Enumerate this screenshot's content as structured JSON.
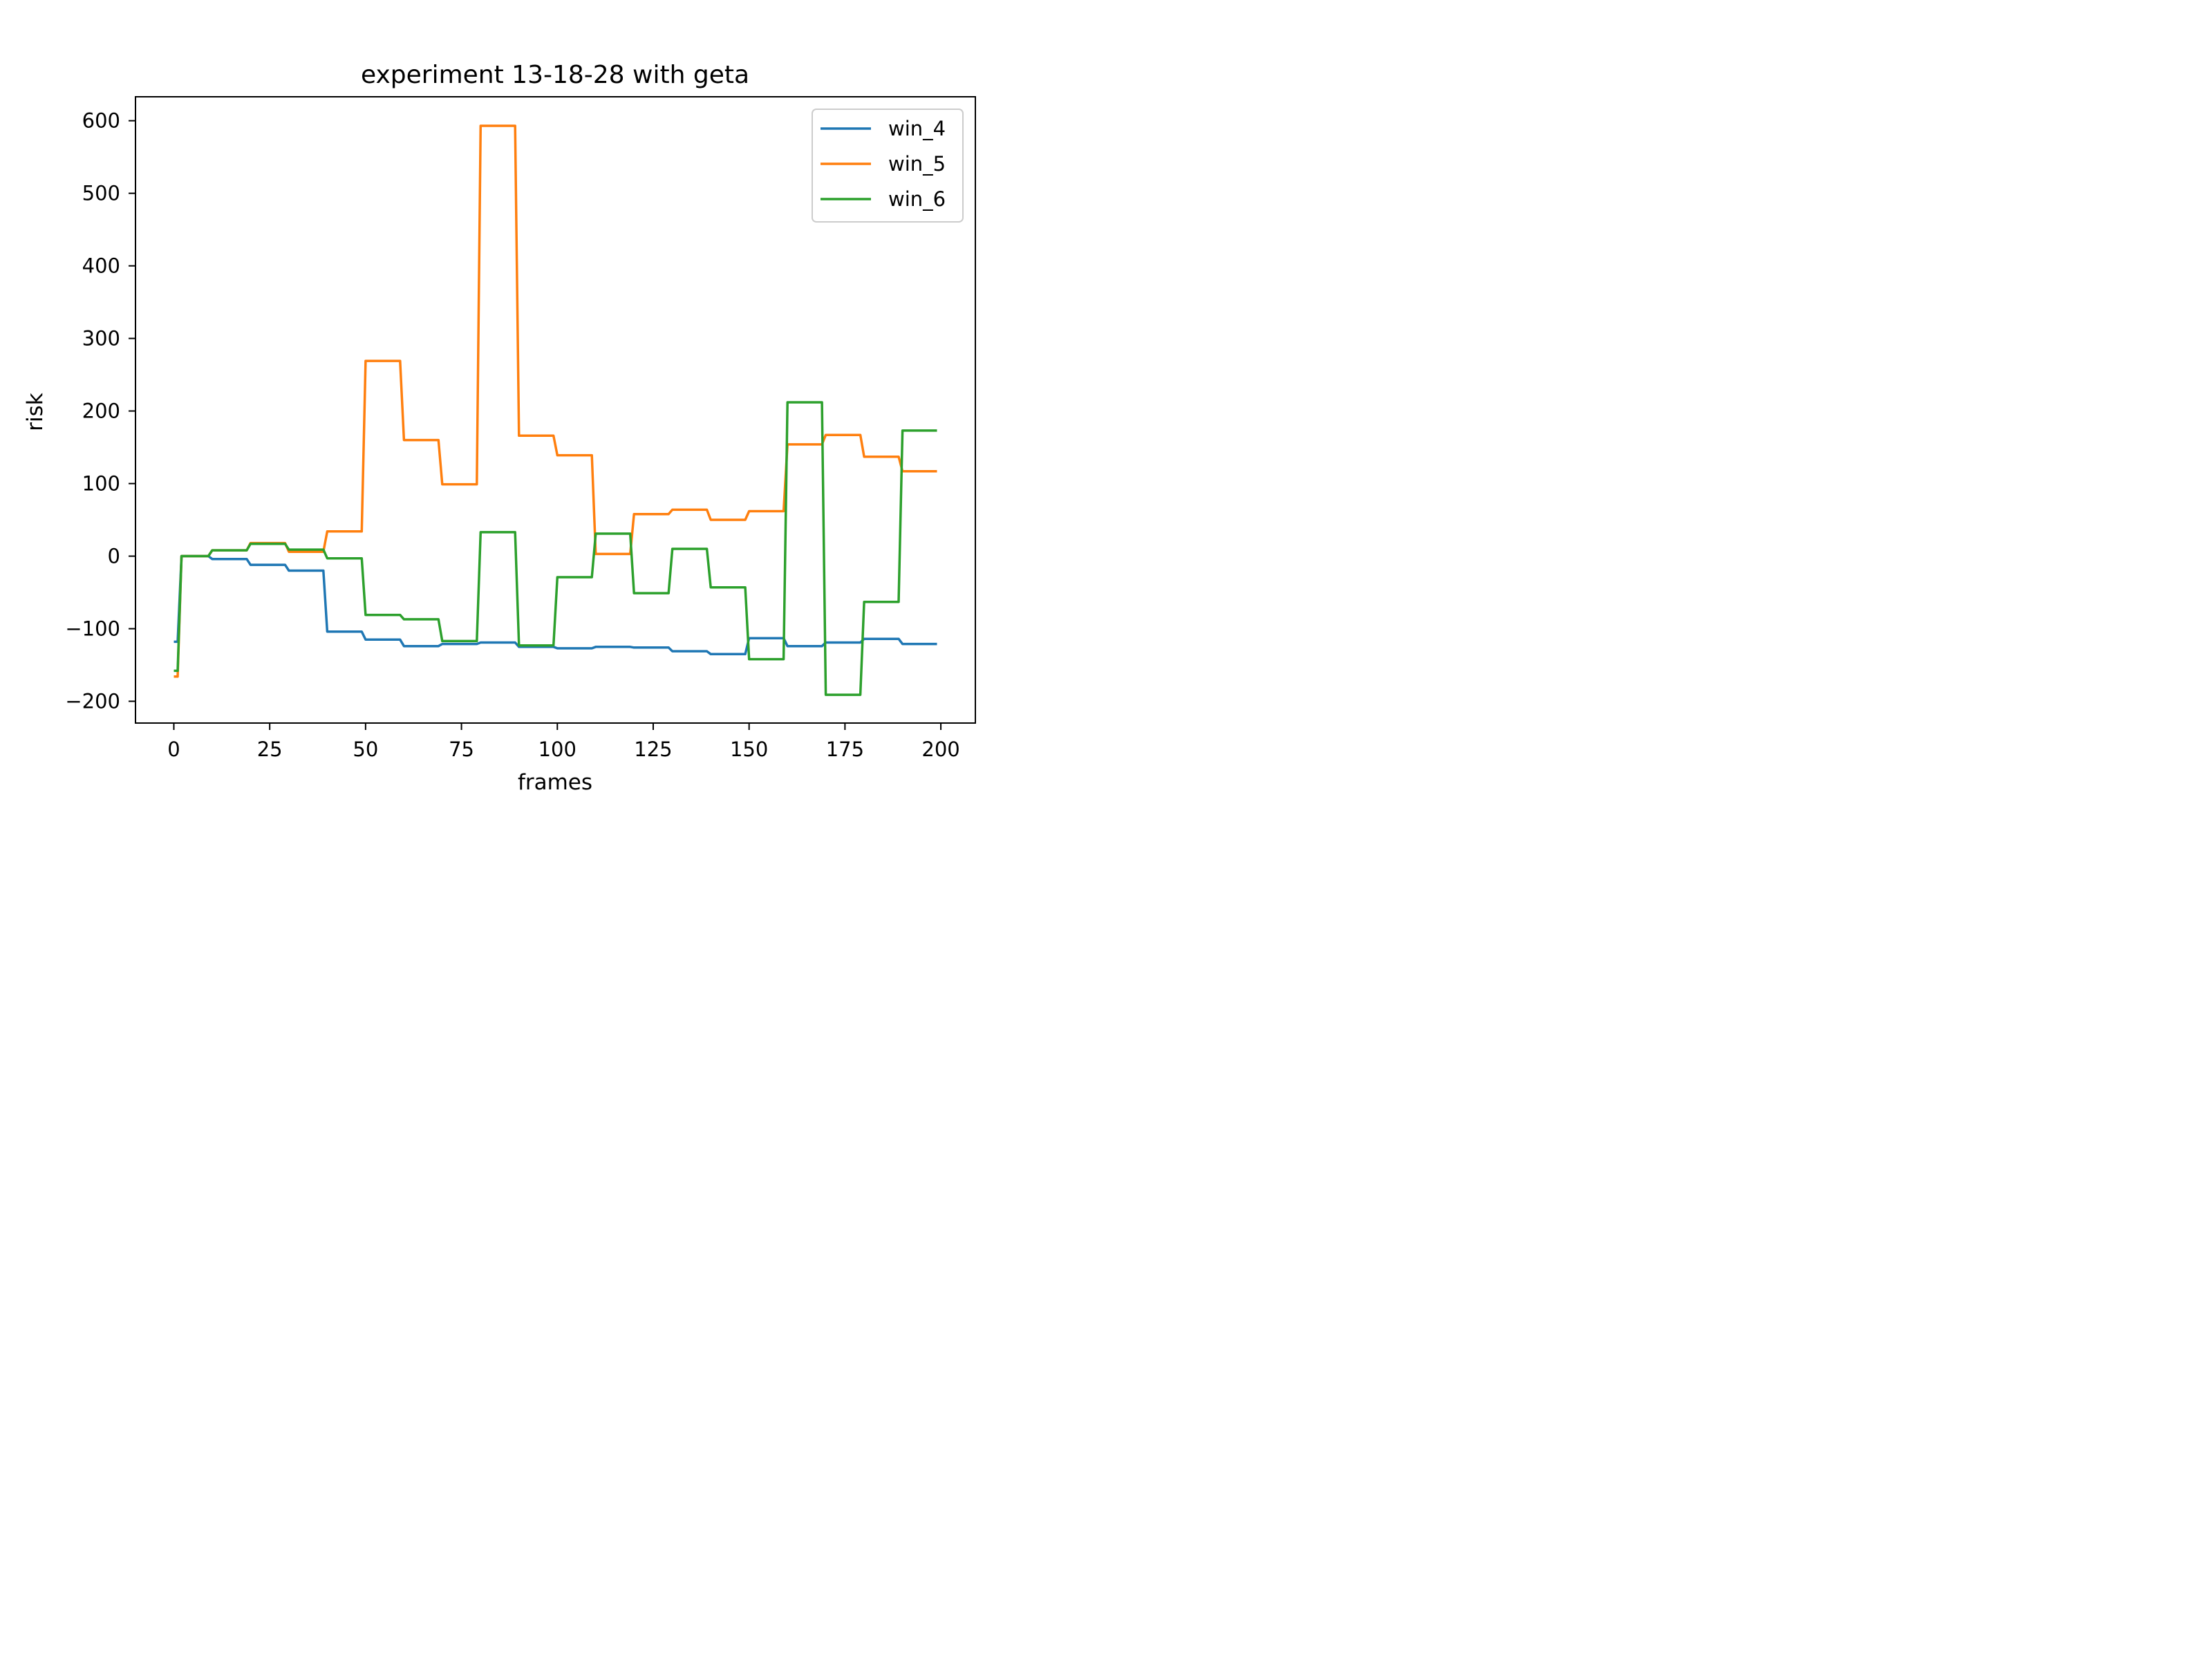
{
  "chart_data": {
    "type": "line",
    "title": "experiment 13-18-28 with geta",
    "xlabel": "frames",
    "ylabel": "risk",
    "xlim": [
      -10,
      209
    ],
    "ylim": [
      -230,
      633
    ],
    "xticks": [
      0,
      25,
      50,
      75,
      100,
      125,
      150,
      175,
      200
    ],
    "yticks": [
      -200,
      -100,
      0,
      100,
      200,
      300,
      400,
      500,
      600
    ],
    "grid": false,
    "legend_position": "top-right",
    "series": [
      {
        "name": "win_4",
        "color": "#1f77b4",
        "points": [
          [
            0,
            -118
          ],
          [
            1,
            -118
          ],
          [
            2,
            0
          ],
          [
            9,
            0
          ],
          [
            10,
            -4
          ],
          [
            19,
            -4
          ],
          [
            20,
            -12
          ],
          [
            29,
            -12
          ],
          [
            30,
            -20
          ],
          [
            39,
            -20
          ],
          [
            40,
            -104
          ],
          [
            49,
            -104
          ],
          [
            50,
            -115
          ],
          [
            59,
            -115
          ],
          [
            60,
            -124
          ],
          [
            69,
            -124
          ],
          [
            70,
            -121
          ],
          [
            79,
            -121
          ],
          [
            80,
            -119
          ],
          [
            89,
            -119
          ],
          [
            90,
            -125
          ],
          [
            99,
            -125
          ],
          [
            100,
            -127
          ],
          [
            109,
            -127
          ],
          [
            110,
            -125
          ],
          [
            119,
            -125
          ],
          [
            120,
            -126
          ],
          [
            129,
            -126
          ],
          [
            130,
            -131
          ],
          [
            139,
            -131
          ],
          [
            140,
            -135
          ],
          [
            149,
            -135
          ],
          [
            150,
            -113
          ],
          [
            159,
            -113
          ],
          [
            160,
            -124
          ],
          [
            169,
            -124
          ],
          [
            170,
            -119
          ],
          [
            179,
            -119
          ],
          [
            180,
            -114
          ],
          [
            189,
            -114
          ],
          [
            190,
            -121
          ],
          [
            199,
            -121
          ]
        ]
      },
      {
        "name": "win_5",
        "color": "#ff7f0e",
        "points": [
          [
            0,
            -166
          ],
          [
            1,
            -166
          ],
          [
            2,
            0
          ],
          [
            9,
            0
          ],
          [
            10,
            8
          ],
          [
            19,
            8
          ],
          [
            20,
            18
          ],
          [
            29,
            18
          ],
          [
            30,
            6
          ],
          [
            39,
            6
          ],
          [
            40,
            34
          ],
          [
            49,
            34
          ],
          [
            50,
            269
          ],
          [
            59,
            269
          ],
          [
            60,
            160
          ],
          [
            69,
            160
          ],
          [
            70,
            99
          ],
          [
            79,
            99
          ],
          [
            80,
            593
          ],
          [
            89,
            593
          ],
          [
            90,
            166
          ],
          [
            99,
            166
          ],
          [
            100,
            139
          ],
          [
            109,
            139
          ],
          [
            110,
            3
          ],
          [
            119,
            3
          ],
          [
            120,
            58
          ],
          [
            129,
            58
          ],
          [
            130,
            64
          ],
          [
            139,
            64
          ],
          [
            140,
            50
          ],
          [
            149,
            50
          ],
          [
            150,
            62
          ],
          [
            159,
            62
          ],
          [
            160,
            154
          ],
          [
            169,
            154
          ],
          [
            170,
            167
          ],
          [
            179,
            167
          ],
          [
            180,
            137
          ],
          [
            189,
            137
          ],
          [
            190,
            117
          ],
          [
            199,
            117
          ]
        ]
      },
      {
        "name": "win_6",
        "color": "#2ca02c",
        "points": [
          [
            0,
            -158
          ],
          [
            1,
            -158
          ],
          [
            2,
            0
          ],
          [
            9,
            0
          ],
          [
            10,
            8
          ],
          [
            19,
            8
          ],
          [
            20,
            17
          ],
          [
            29,
            17
          ],
          [
            30,
            9
          ],
          [
            39,
            9
          ],
          [
            40,
            -3
          ],
          [
            49,
            -3
          ],
          [
            50,
            -81
          ],
          [
            59,
            -81
          ],
          [
            60,
            -87
          ],
          [
            69,
            -87
          ],
          [
            70,
            -117
          ],
          [
            79,
            -117
          ],
          [
            80,
            33
          ],
          [
            89,
            33
          ],
          [
            90,
            -123
          ],
          [
            99,
            -123
          ],
          [
            100,
            -29
          ],
          [
            109,
            -29
          ],
          [
            110,
            31
          ],
          [
            119,
            31
          ],
          [
            120,
            -51
          ],
          [
            129,
            -51
          ],
          [
            130,
            10
          ],
          [
            139,
            10
          ],
          [
            140,
            -43
          ],
          [
            149,
            -43
          ],
          [
            150,
            -142
          ],
          [
            159,
            -142
          ],
          [
            160,
            212
          ],
          [
            169,
            212
          ],
          [
            170,
            -191
          ],
          [
            179,
            -191
          ],
          [
            180,
            -63
          ],
          [
            189,
            -63
          ],
          [
            190,
            173
          ],
          [
            199,
            173
          ]
        ]
      }
    ]
  }
}
